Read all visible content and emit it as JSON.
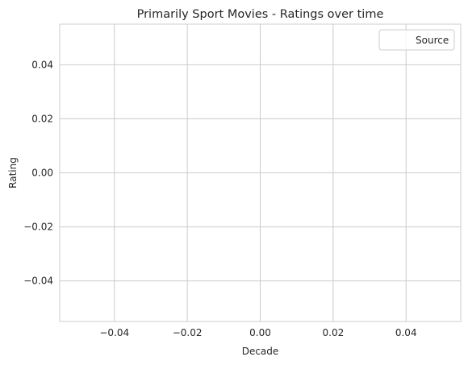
{
  "chart_data": {
    "type": "line",
    "title": "Primarily Sport Movies - Ratings over time",
    "xlabel": "Decade",
    "ylabel": "Rating",
    "xlim": [
      -0.055,
      0.055
    ],
    "ylim": [
      -0.055,
      0.055
    ],
    "x_ticks": [
      -0.04,
      -0.02,
      0.0,
      0.02,
      0.04
    ],
    "x_tick_labels": [
      "−0.04",
      "−0.02",
      "0.00",
      "0.02",
      "0.04"
    ],
    "y_ticks": [
      -0.04,
      -0.02,
      0.0,
      0.02,
      0.04
    ],
    "y_tick_labels": [
      "−0.04",
      "−0.02",
      "0.00",
      "0.02",
      "0.04"
    ],
    "grid": true,
    "legend": {
      "placement": "top-right",
      "entries": [
        {
          "label": "Source"
        }
      ]
    },
    "series": [],
    "colors": {
      "grid": "#cccccc",
      "frame": "#cccccc",
      "text": "#262626",
      "background": "#ffffff"
    }
  }
}
